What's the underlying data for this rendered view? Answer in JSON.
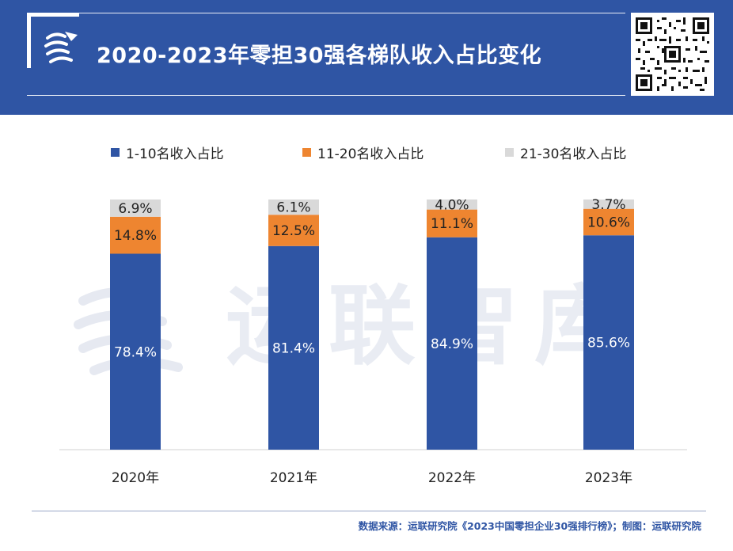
{
  "header": {
    "title": "2020-2023年零担30强各梯队收入占比变化"
  },
  "chart_data": {
    "type": "bar",
    "stacked": true,
    "percent_stacked": true,
    "categories": [
      "2020年",
      "2021年",
      "2022年",
      "2023年"
    ],
    "series": [
      {
        "name": "1-10名收入占比",
        "values": [
          78.4,
          81.4,
          84.9,
          85.6
        ],
        "labels": [
          "78.4%",
          "81.4%",
          "84.9%",
          "85.6%"
        ],
        "color": "#2f55a4"
      },
      {
        "name": "11-20名收入占比",
        "values": [
          14.8,
          12.5,
          11.1,
          10.6
        ],
        "labels": [
          "14.8%",
          "12.5%",
          "11.1%",
          "10.6%"
        ],
        "color": "#ee8530"
      },
      {
        "name": "21-30名收入占比",
        "values": [
          6.9,
          6.1,
          4.0,
          3.7
        ],
        "labels": [
          "6.9%",
          "6.1%",
          "4.0%",
          "3.7%"
        ],
        "color": "#d9d9d9"
      }
    ],
    "legend_position": "top",
    "grid": false,
    "ylim": [
      0,
      100
    ]
  },
  "watermark": "运联智库",
  "footer": {
    "source": "数据来源：运联研究院《2023中国零担企业30强排行榜》；制图：运联研究院"
  }
}
